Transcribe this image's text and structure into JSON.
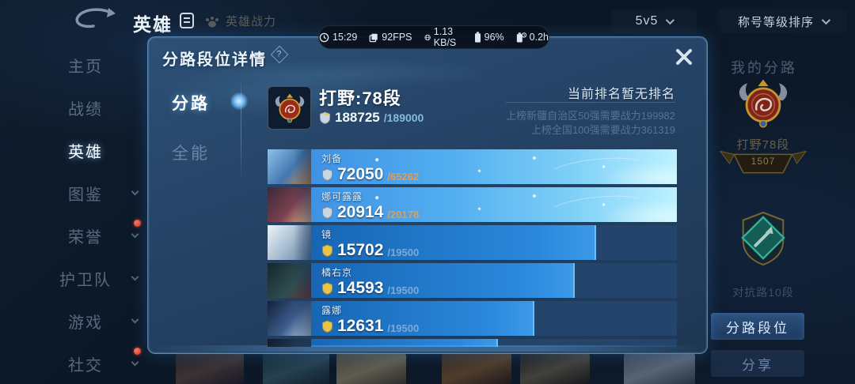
{
  "icons": {
    "help": "?"
  },
  "status_bar": {
    "time": "15:29",
    "fps": "92FPS",
    "network": "1.13 KB/S",
    "battery": "96%",
    "battery_time": "0.2h"
  },
  "top_bar": {
    "title": "英雄",
    "power_label": "英雄战力",
    "mode_select": "5v5",
    "sort_select": "称号等级排序"
  },
  "sidebar": {
    "items": [
      {
        "label": "主页"
      },
      {
        "label": "战绩"
      },
      {
        "label": "英雄"
      },
      {
        "label": "图鉴"
      },
      {
        "label": "荣誉"
      },
      {
        "label": "护卫队"
      },
      {
        "label": "游戏"
      },
      {
        "label": "社交"
      }
    ]
  },
  "right_panel": {
    "title": "我的分路",
    "rank_label": "打野78段",
    "banner_value": "1507",
    "secondary_rank": "对抗路10段",
    "lane_rank_button": "分路段位",
    "share_button": "分享"
  },
  "modal": {
    "title": "分路段位详情",
    "tabs": [
      {
        "label": "分路"
      },
      {
        "label": "全能"
      }
    ],
    "header": {
      "rank_title": "打野:78段",
      "progress_current": "188725",
      "progress_total": "/189000",
      "rank_note": "当前排名暂无排名",
      "note_line1": "上榜新疆自治区50强需要战力199982",
      "note_line2": "上榜全国100强需要战力361319"
    },
    "heroes": [
      {
        "name": "刘备",
        "value": "72050",
        "cap": "/65262",
        "fill": 100
      },
      {
        "name": "娜可露露",
        "value": "20914",
        "cap": "/20178",
        "fill": 100
      },
      {
        "name": "镜",
        "value": "15702",
        "cap": "/19500",
        "fill": 78
      },
      {
        "name": "橘右京",
        "value": "14593",
        "cap": "/19500",
        "fill": 72
      },
      {
        "name": "露娜",
        "value": "12631",
        "cap": "/19500",
        "fill": 61
      }
    ],
    "partial_fill": 51,
    "accent_colors": {
      "over_cap": "#e89b4d",
      "under_cap": "#7fa9d4",
      "bar_highlight": "#7fd0f7",
      "bar_normal": "#2b88dc"
    }
  }
}
